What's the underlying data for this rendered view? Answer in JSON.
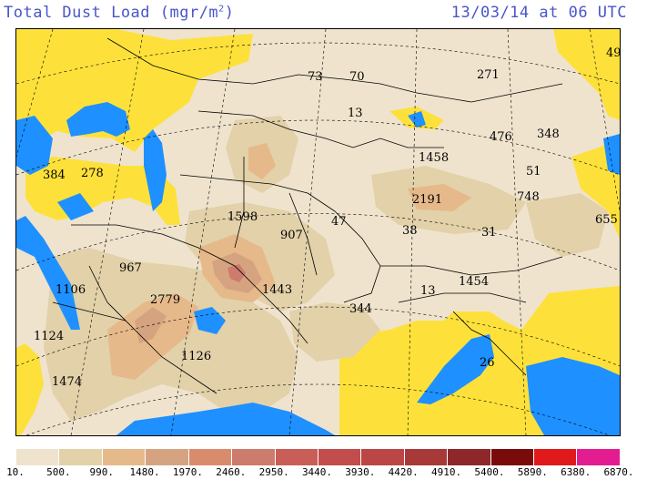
{
  "title": {
    "name": "Total Dust Load (mgr/m",
    "exp": "2",
    "close": ")"
  },
  "timestamp": "13/03/14 at 06 UTC",
  "colors": {
    "land_low": "#efe3cd",
    "water": "#1e90ff",
    "no_dust_yellow": "#fde13a"
  },
  "map_labels": [
    {
      "text": "73"
    },
    {
      "text": "70"
    },
    {
      "text": "271"
    },
    {
      "text": "49"
    },
    {
      "text": "13"
    },
    {
      "text": "476"
    },
    {
      "text": "348"
    },
    {
      "text": "384"
    },
    {
      "text": "278"
    },
    {
      "text": "1458"
    },
    {
      "text": "51"
    },
    {
      "text": "748"
    },
    {
      "text": "2191"
    },
    {
      "text": "1598"
    },
    {
      "text": "47"
    },
    {
      "text": "907"
    },
    {
      "text": "38"
    },
    {
      "text": "31"
    },
    {
      "text": "655"
    },
    {
      "text": "967"
    },
    {
      "text": "1106"
    },
    {
      "text": "1443"
    },
    {
      "text": "13"
    },
    {
      "text": "1454"
    },
    {
      "text": "2779"
    },
    {
      "text": "344"
    },
    {
      "text": "1124"
    },
    {
      "text": "1126"
    },
    {
      "text": "26"
    },
    {
      "text": "1474"
    }
  ],
  "legend": {
    "colors": [
      "#efe3cd",
      "#e2d1a9",
      "#e6b98a",
      "#d6a381",
      "#d98c6c",
      "#cc7b6c",
      "#c85e57",
      "#c34c4c",
      "#bc4545",
      "#a83939",
      "#8e2729",
      "#7a0b0b",
      "#e01a1a",
      "#e31c91"
    ],
    "ticks": [
      "10.",
      "500.",
      "990.",
      "1480.",
      "1970.",
      "2460.",
      "2950.",
      "3440.",
      "3930.",
      "4420.",
      "4910.",
      "5400.",
      "5890.",
      "6380.",
      "6870."
    ]
  }
}
